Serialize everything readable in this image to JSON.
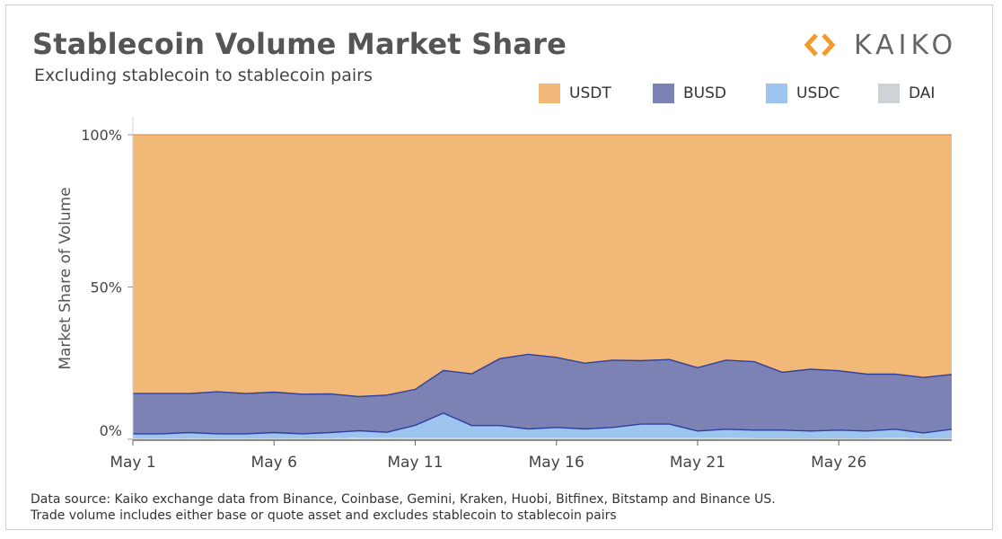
{
  "header": {
    "title": "Stablecoin Volume Market Share",
    "subtitle": "Excluding stablecoin to stablecoin pairs",
    "logo_text": "KAIKO"
  },
  "footer": {
    "line1": "Data source: Kaiko exchange data from Binance, Coinbase, Gemini, Kraken, Huobi, Bitfinex, Bitstamp and Binance US.",
    "line2": "Trade volume includes either base or quote asset and excludes stablecoin to stablecoin pairs"
  },
  "colors": {
    "USDT": "#f2b877",
    "BUSD": "#7d82b4",
    "USDC": "#9ec4f0",
    "DAI": "#ced3d8",
    "line": "#2f3f9e",
    "usdt_line": "#e6a04e"
  },
  "chart_data": {
    "type": "area",
    "stacked": true,
    "percent": true,
    "ylabel": "Market Share of Volume",
    "xlabel": "",
    "ylim": [
      0,
      100
    ],
    "yticks": [
      0,
      50,
      100
    ],
    "ytick_labels": [
      "0%",
      "50%",
      "100%"
    ],
    "legend_position": "top-right",
    "grid": false,
    "x": [
      "May 1",
      "May 2",
      "May 3",
      "May 4",
      "May 5",
      "May 6",
      "May 7",
      "May 8",
      "May 9",
      "May 10",
      "May 11",
      "May 12",
      "May 13",
      "May 14",
      "May 15",
      "May 16",
      "May 17",
      "May 18",
      "May 19",
      "May 20",
      "May 21",
      "May 22",
      "May 23",
      "May 24",
      "May 25",
      "May 26",
      "May 27",
      "May 28",
      "May 29",
      "May 30"
    ],
    "xtick_labels": [
      "May 1",
      "May 6",
      "May 11",
      "May 16",
      "May 21",
      "May 26"
    ],
    "xtick_index": [
      0,
      5,
      10,
      15,
      20,
      25
    ],
    "series": [
      {
        "name": "DAI",
        "values": [
          0.3,
          0.3,
          0.3,
          0.3,
          0.3,
          0.3,
          0.3,
          0.3,
          0.6,
          0.6,
          0.6,
          0.6,
          0.6,
          0.6,
          0.6,
          0.6,
          0.6,
          0.6,
          0.6,
          0.6,
          0.6,
          0.6,
          0.3,
          0.3,
          0.3,
          0.3,
          0.3,
          0.6,
          0.3,
          0.3
        ]
      },
      {
        "name": "USDC",
        "values": [
          1.5,
          1.5,
          1.9,
          1.5,
          1.5,
          1.9,
          1.5,
          1.9,
          2.2,
          1.7,
          4.0,
          8.0,
          3.9,
          3.9,
          2.8,
          3.3,
          2.8,
          3.3,
          4.4,
          4.4,
          2.1,
          2.7,
          2.7,
          2.7,
          2.4,
          2.7,
          2.4,
          2.7,
          1.8,
          3.0
        ]
      },
      {
        "name": "BUSD",
        "values": [
          13.2,
          13.2,
          12.8,
          13.8,
          13.2,
          13.3,
          13.0,
          12.7,
          11.2,
          12.2,
          11.8,
          14.0,
          17.0,
          22.0,
          24.5,
          23.0,
          21.6,
          22.1,
          20.8,
          21.2,
          20.8,
          22.7,
          22.5,
          19.0,
          20.3,
          19.5,
          18.7,
          18.1,
          18.2,
          18.0
        ]
      },
      {
        "name": "USDT",
        "values": [
          85.0,
          85.0,
          85.0,
          84.4,
          85.0,
          84.5,
          85.2,
          85.1,
          86.0,
          85.5,
          83.6,
          77.4,
          78.5,
          73.5,
          72.1,
          73.1,
          75.0,
          74.0,
          74.2,
          73.8,
          76.5,
          74.0,
          74.5,
          78.0,
          77.0,
          77.5,
          78.6,
          78.6,
          79.7,
          78.7
        ]
      }
    ],
    "legend": [
      "USDT",
      "BUSD",
      "USDC",
      "DAI"
    ]
  }
}
